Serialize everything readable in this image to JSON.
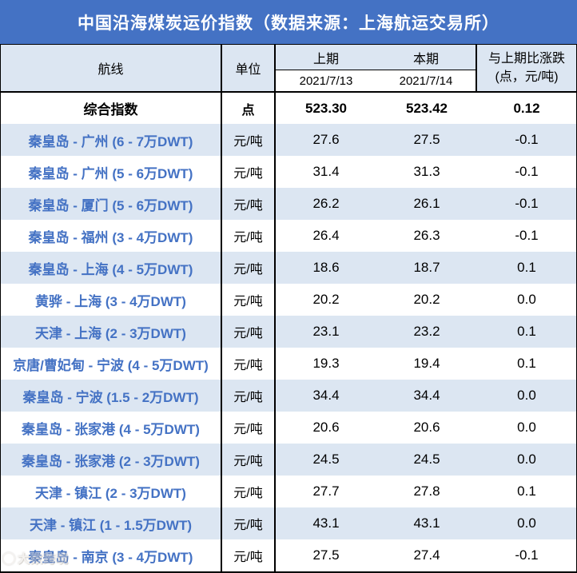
{
  "banner": {
    "title": "中国沿海煤炭运价指数（数据来源：上海航运交易所）"
  },
  "table": {
    "headers": {
      "route": "航线",
      "unit": "单位",
      "prev_period": "上期",
      "curr_period": "本期",
      "prev_date": "2021/7/13",
      "curr_date": "2021/7/14",
      "change_line1": "与上期比涨跌",
      "change_line2": "(点，元/吨)"
    },
    "index_row": {
      "route": "综合指数",
      "unit": "点",
      "prev": "523.30",
      "curr": "523.42",
      "change": "0.12"
    },
    "rows": [
      {
        "route": "秦皇岛 - 广州 (6 - 7万DWT)",
        "unit": "元/吨",
        "prev": "27.6",
        "curr": "27.5",
        "change": "-0.1"
      },
      {
        "route": "秦皇岛 - 广州 (5 - 6万DWT)",
        "unit": "元/吨",
        "prev": "31.4",
        "curr": "31.3",
        "change": "-0.1"
      },
      {
        "route": "秦皇岛 - 厦门 (5 - 6万DWT)",
        "unit": "元/吨",
        "prev": "26.2",
        "curr": "26.1",
        "change": "-0.1"
      },
      {
        "route": "秦皇岛 - 福州 (3 - 4万DWT)",
        "unit": "元/吨",
        "prev": "26.4",
        "curr": "26.3",
        "change": "-0.1"
      },
      {
        "route": "秦皇岛 - 上海 (4 - 5万DWT)",
        "unit": "元/吨",
        "prev": "18.6",
        "curr": "18.7",
        "change": "0.1"
      },
      {
        "route": "黄骅 - 上海 (3 - 4万DWT)",
        "unit": "元/吨",
        "prev": "20.2",
        "curr": "20.2",
        "change": "0.0"
      },
      {
        "route": "天津 - 上海 (2 - 3万DWT)",
        "unit": "元/吨",
        "prev": "23.1",
        "curr": "23.2",
        "change": "0.1"
      },
      {
        "route": "京唐/曹妃甸 - 宁波 (4 - 5万DWT)",
        "unit": "元/吨",
        "prev": "19.3",
        "curr": "19.4",
        "change": "0.1"
      },
      {
        "route": "秦皇岛 - 宁波 (1.5 - 2万DWT)",
        "unit": "元/吨",
        "prev": "34.4",
        "curr": "34.4",
        "change": "0.0"
      },
      {
        "route": "秦皇岛 - 张家港 (4 - 5万DWT)",
        "unit": "元/吨",
        "prev": "20.6",
        "curr": "20.6",
        "change": "0.0"
      },
      {
        "route": "秦皇岛 - 张家港 (2 - 3万DWT)",
        "unit": "元/吨",
        "prev": "24.5",
        "curr": "24.5",
        "change": "0.0"
      },
      {
        "route": "天津 - 镇江 (2 - 3万DWT)",
        "unit": "元/吨",
        "prev": "27.7",
        "curr": "27.8",
        "change": "0.1"
      },
      {
        "route": "天津 - 镇江 (1 - 1.5万DWT)",
        "unit": "元/吨",
        "prev": "43.1",
        "curr": "43.1",
        "change": "0.0"
      },
      {
        "route": "秦皇岛 - 南京 (3 - 4万DWT)",
        "unit": "元/吨",
        "prev": "27.5",
        "curr": "27.4",
        "change": "-0.1"
      }
    ]
  },
  "watermark": {
    "text": "大数跨境"
  },
  "colors": {
    "banner_bg": "#4472C4",
    "row_alt_bg": "#DCE6F2",
    "route_text": "#4472C4",
    "border": "#000000"
  },
  "chart_data": {
    "type": "table",
    "title": "中国沿海煤炭运价指数（数据来源：上海航运交易所）",
    "columns": [
      "航线",
      "单位",
      "上期 2021/7/13",
      "本期 2021/7/14",
      "与上期比涨跌 (点，元/吨)"
    ],
    "rows": [
      [
        "综合指数",
        "点",
        523.3,
        523.42,
        0.12
      ],
      [
        "秦皇岛 - 广州 (6 - 7万DWT)",
        "元/吨",
        27.6,
        27.5,
        -0.1
      ],
      [
        "秦皇岛 - 广州 (5 - 6万DWT)",
        "元/吨",
        31.4,
        31.3,
        -0.1
      ],
      [
        "秦皇岛 - 厦门 (5 - 6万DWT)",
        "元/吨",
        26.2,
        26.1,
        -0.1
      ],
      [
        "秦皇岛 - 福州 (3 - 4万DWT)",
        "元/吨",
        26.4,
        26.3,
        -0.1
      ],
      [
        "秦皇岛 - 上海 (4 - 5万DWT)",
        "元/吨",
        18.6,
        18.7,
        0.1
      ],
      [
        "黄骅 - 上海 (3 - 4万DWT)",
        "元/吨",
        20.2,
        20.2,
        0.0
      ],
      [
        "天津 - 上海 (2 - 3万DWT)",
        "元/吨",
        23.1,
        23.2,
        0.1
      ],
      [
        "京唐/曹妃甸 - 宁波 (4 - 5万DWT)",
        "元/吨",
        19.3,
        19.4,
        0.1
      ],
      [
        "秦皇岛 - 宁波 (1.5 - 2万DWT)",
        "元/吨",
        34.4,
        34.4,
        0.0
      ],
      [
        "秦皇岛 - 张家港 (4 - 5万DWT)",
        "元/吨",
        20.6,
        20.6,
        0.0
      ],
      [
        "秦皇岛 - 张家港 (2 - 3万DWT)",
        "元/吨",
        24.5,
        24.5,
        0.0
      ],
      [
        "天津 - 镇江 (2 - 3万DWT)",
        "元/吨",
        27.7,
        27.8,
        0.1
      ],
      [
        "天津 - 镇江 (1 - 1.5万DWT)",
        "元/吨",
        43.1,
        43.1,
        0.0
      ],
      [
        "秦皇岛 - 南京 (3 - 4万DWT)",
        "元/吨",
        27.5,
        27.4,
        -0.1
      ]
    ]
  }
}
